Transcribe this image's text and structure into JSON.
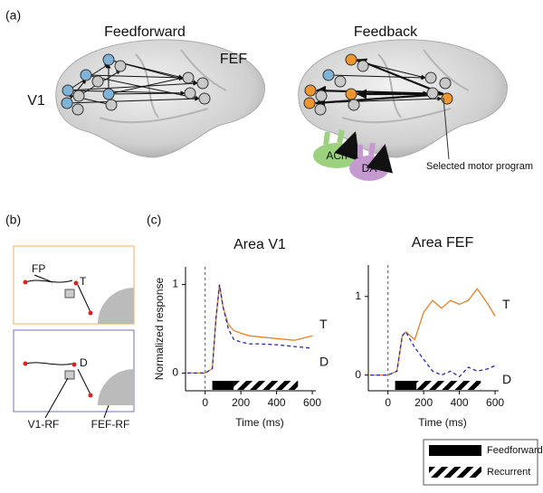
{
  "panels": {
    "a": "(a)",
    "b": "(b)",
    "c": "(c)"
  },
  "diagram": {
    "feedforward_title": "Feedforward",
    "feedback_title": "Feedback",
    "v1": "V1",
    "fef": "FEF",
    "ach": "ACh",
    "da": "DA",
    "selected": "Selected motor program"
  },
  "schematic": {
    "fp": "FP",
    "t": "T",
    "d": "D",
    "v1_rf": "V1-RF",
    "fef_rf": "FEF-RF"
  },
  "epochs": [
    {
      "name": "Feedforward",
      "range": [
        40,
        160
      ]
    },
    {
      "name": "Recurrent",
      "range": [
        160,
        520
      ]
    }
  ],
  "chart_data": [
    {
      "type": "line",
      "title": "Area V1",
      "ylabel": "Normalized response",
      "xlabel": "Time (ms)",
      "x": [
        -100,
        0,
        40,
        60,
        80,
        100,
        130,
        160,
        200,
        250,
        300,
        400,
        500,
        600
      ],
      "series": [
        {
          "name": "T",
          "color": "#e8822a",
          "dashed": false,
          "values": [
            0,
            0,
            0.05,
            0.6,
            1.0,
            0.75,
            0.55,
            0.48,
            0.45,
            0.42,
            0.41,
            0.39,
            0.37,
            0.42
          ]
        },
        {
          "name": "D",
          "color": "#2b2ba3",
          "dashed": true,
          "values": [
            0,
            0,
            0.05,
            0.6,
            1.0,
            0.75,
            0.5,
            0.38,
            0.35,
            0.33,
            0.33,
            0.32,
            0.3,
            0.28
          ]
        }
      ],
      "xlim": [
        -110,
        620
      ],
      "xticks": [
        0,
        200,
        400,
        600
      ],
      "ylim": [
        -0.2,
        1.2
      ],
      "yticks": [
        0,
        1
      ]
    },
    {
      "type": "line",
      "title": "Area FEF",
      "xlabel": "Time (ms)",
      "x": [
        -100,
        0,
        50,
        80,
        100,
        150,
        200,
        250,
        300,
        350,
        400,
        450,
        500,
        560,
        600
      ],
      "series": [
        {
          "name": "T",
          "color": "#e8822a",
          "dashed": false,
          "values": [
            0,
            0,
            0.05,
            0.5,
            0.55,
            0.45,
            0.8,
            0.95,
            0.85,
            0.95,
            0.9,
            0.95,
            1.1,
            0.9,
            0.75
          ]
        },
        {
          "name": "D",
          "color": "#2b2ba3",
          "dashed": true,
          "values": [
            0,
            0,
            0.05,
            0.5,
            0.55,
            0.35,
            0.2,
            0.05,
            0,
            0.05,
            -0.02,
            0.1,
            0.05,
            0.08,
            0.12
          ]
        }
      ],
      "xlim": [
        -110,
        620
      ],
      "xticks": [
        0,
        200,
        400,
        600
      ],
      "ylim": [
        -0.2,
        1.4
      ],
      "yticks": [
        0,
        1
      ]
    }
  ]
}
